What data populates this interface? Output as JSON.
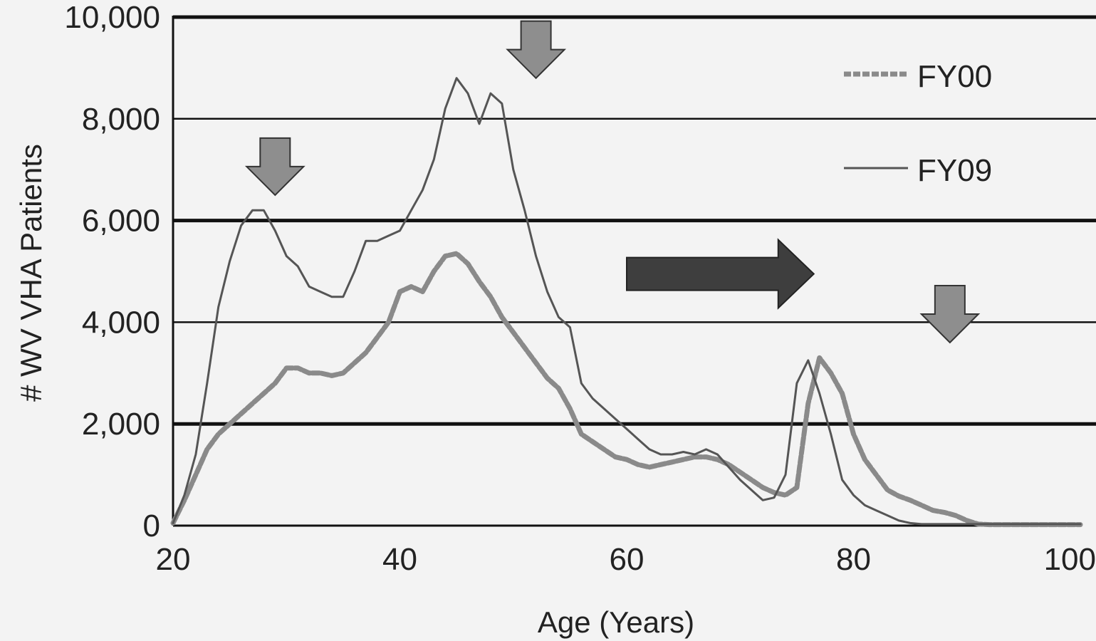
{
  "chart_data": {
    "type": "line",
    "title": "",
    "xlabel": "Age (Years)",
    "ylabel": "# WV VHA Patients",
    "xlim": [
      20,
      100
    ],
    "ylim": [
      0,
      10000
    ],
    "x_ticks": [
      20,
      40,
      60,
      80,
      100
    ],
    "y_ticks": [
      0,
      2000,
      4000,
      6000,
      8000,
      10000
    ],
    "x_tick_labels": [
      "20",
      "40",
      "60",
      "80",
      "100"
    ],
    "y_tick_labels": [
      "0",
      "2,000",
      "4,000",
      "6,000",
      "8,000",
      "10,000"
    ],
    "grid": "horizontal",
    "legend_position": "top-right",
    "series": [
      {
        "name": "FY00",
        "style": "dashed-thick",
        "color": "#8a8a8a",
        "x": [
          20,
          21,
          22,
          23,
          24,
          25,
          26,
          27,
          28,
          29,
          30,
          31,
          32,
          33,
          34,
          35,
          36,
          37,
          38,
          39,
          40,
          41,
          42,
          43,
          44,
          45,
          46,
          47,
          48,
          49,
          50,
          51,
          52,
          53,
          54,
          55,
          56,
          57,
          58,
          59,
          60,
          61,
          62,
          63,
          64,
          65,
          66,
          67,
          68,
          69,
          70,
          71,
          72,
          73,
          74,
          75,
          76,
          77,
          78,
          79,
          80,
          81,
          82,
          83,
          84,
          85,
          86,
          87,
          88,
          89,
          90,
          91,
          92,
          93,
          94,
          95,
          96,
          97,
          98,
          99,
          100
        ],
        "y": [
          50,
          500,
          1000,
          1500,
          1800,
          2000,
          2200,
          2400,
          2600,
          2800,
          3100,
          3100,
          3000,
          3000,
          2950,
          3000,
          3200,
          3400,
          3700,
          4000,
          4600,
          4700,
          4600,
          5000,
          5300,
          5350,
          5150,
          4800,
          4500,
          4100,
          3800,
          3500,
          3200,
          2900,
          2700,
          2300,
          1800,
          1650,
          1500,
          1350,
          1300,
          1200,
          1150,
          1200,
          1250,
          1300,
          1350,
          1350,
          1300,
          1200,
          1050,
          900,
          750,
          650,
          600,
          750,
          2400,
          3300,
          3000,
          2600,
          1800,
          1300,
          1000,
          700,
          580,
          500,
          400,
          300,
          260,
          200,
          100,
          30,
          20,
          20,
          20,
          20,
          20,
          20,
          20,
          20,
          20
        ]
      },
      {
        "name": "FY09",
        "style": "solid-thin",
        "color": "#555555",
        "x": [
          20,
          21,
          22,
          23,
          24,
          25,
          26,
          27,
          28,
          29,
          30,
          31,
          32,
          33,
          34,
          35,
          36,
          37,
          38,
          39,
          40,
          41,
          42,
          43,
          44,
          45,
          46,
          47,
          48,
          49,
          50,
          51,
          52,
          53,
          54,
          55,
          56,
          57,
          58,
          59,
          60,
          61,
          62,
          63,
          64,
          65,
          66,
          67,
          68,
          69,
          70,
          71,
          72,
          73,
          74,
          75,
          76,
          77,
          78,
          79,
          80,
          81,
          82,
          83,
          84,
          85,
          86,
          87,
          88,
          89,
          90,
          91,
          92,
          93,
          94,
          95,
          96,
          97,
          98,
          99,
          100
        ],
        "y": [
          50,
          600,
          1400,
          2800,
          4300,
          5200,
          5900,
          6200,
          6200,
          5800,
          5300,
          5100,
          4700,
          4600,
          4500,
          4500,
          5000,
          5600,
          5600,
          5700,
          5800,
          6200,
          6600,
          7200,
          8200,
          8800,
          8500,
          7900,
          8500,
          8300,
          7000,
          6200,
          5300,
          4600,
          4100,
          3900,
          2800,
          2500,
          2300,
          2100,
          1900,
          1700,
          1500,
          1400,
          1400,
          1450,
          1400,
          1500,
          1400,
          1150,
          900,
          700,
          500,
          550,
          1000,
          2800,
          3250,
          2600,
          1800,
          900,
          600,
          400,
          300,
          200,
          100,
          50,
          30,
          30,
          30,
          30,
          30,
          30,
          30,
          30,
          30,
          30,
          30,
          30,
          30,
          30,
          30
        ]
      }
    ],
    "annotations": [
      {
        "type": "down-arrow",
        "x": 29,
        "y": 6500,
        "color": "#8e8e8e"
      },
      {
        "type": "down-arrow",
        "x": 52,
        "y": 8800,
        "color": "#8e8e8e"
      },
      {
        "type": "down-arrow",
        "x": 88.5,
        "y": 3600,
        "color": "#8e8e8e"
      },
      {
        "type": "right-arrow",
        "x_start": 60,
        "x_end": 76.5,
        "y": 4950,
        "color": "#3e3e3e"
      }
    ]
  }
}
